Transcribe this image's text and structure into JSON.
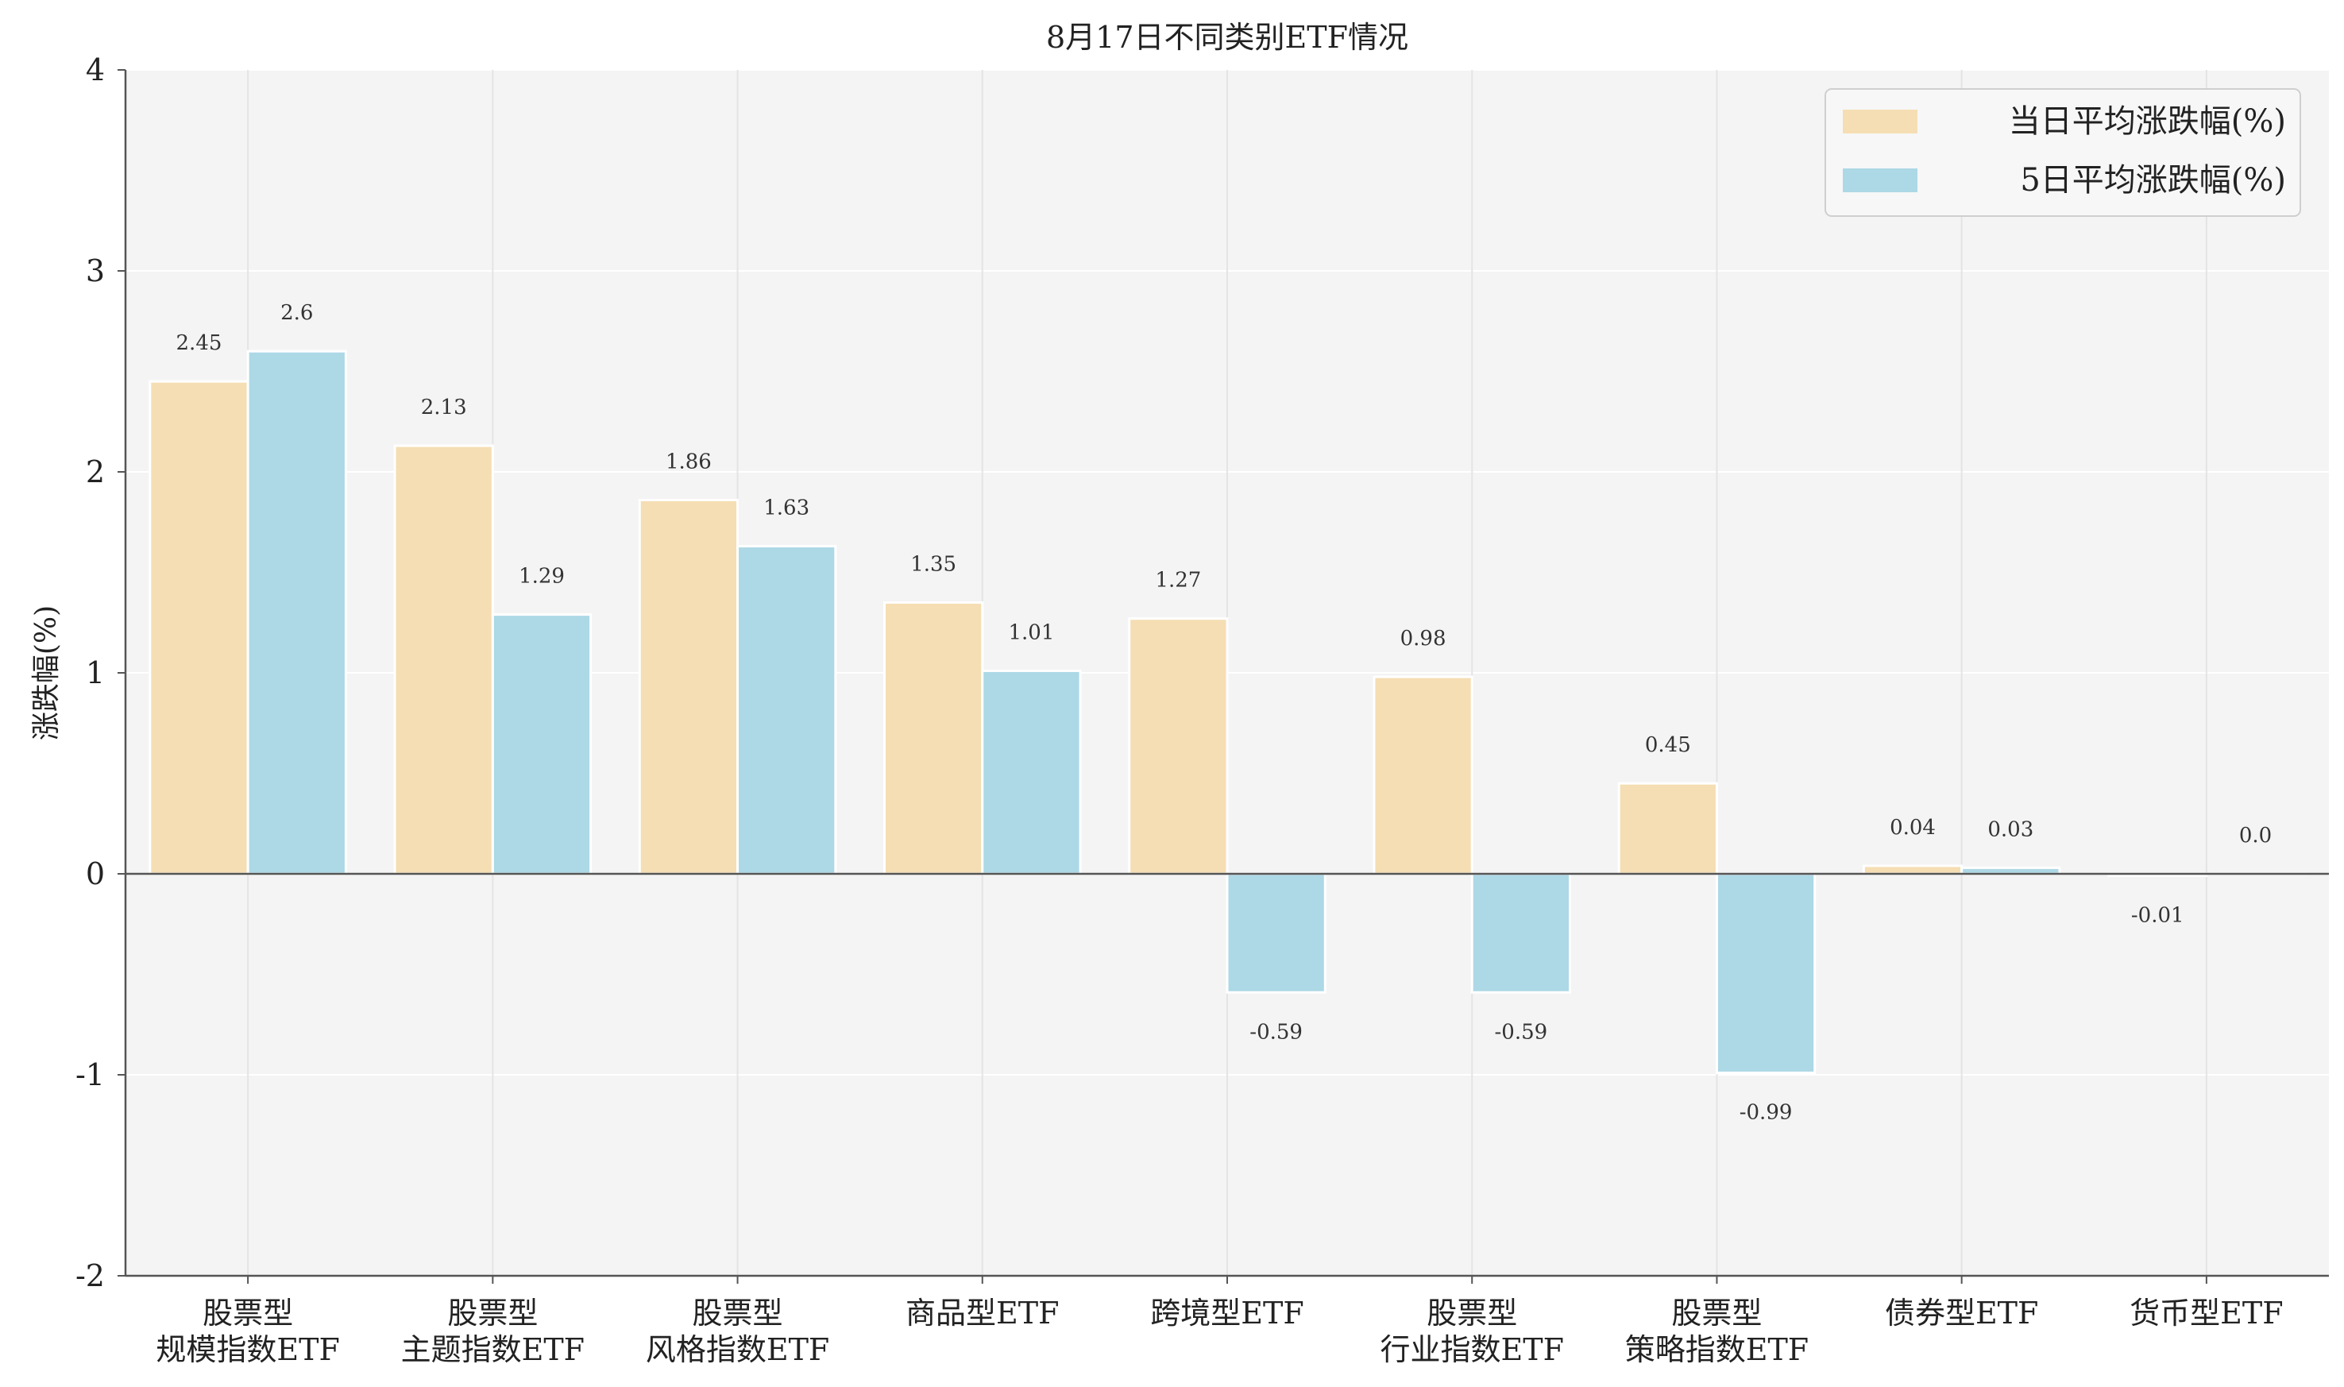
{
  "chart_data": {
    "type": "bar",
    "title": "8月17日不同类别ETF情况",
    "ylabel": "涨跌幅(%)",
    "xlabel": "",
    "ylim": [
      -2,
      4
    ],
    "yticks": [
      -2,
      -1,
      0,
      1,
      2,
      3,
      4
    ],
    "grid": true,
    "legend_position": "top-right",
    "categories": [
      [
        "股票型",
        "规模指数ETF"
      ],
      [
        "股票型",
        "主题指数ETF"
      ],
      [
        "股票型",
        "风格指数ETF"
      ],
      [
        "商品型ETF"
      ],
      [
        "跨境型ETF"
      ],
      [
        "股票型",
        "行业指数ETF"
      ],
      [
        "股票型",
        "策略指数ETF"
      ],
      [
        "债券型ETF"
      ],
      [
        "货币型ETF"
      ]
    ],
    "series": [
      {
        "name": "当日平均涨跌幅(%)",
        "color": "#f5deb3",
        "values": [
          2.45,
          2.13,
          1.86,
          1.35,
          1.27,
          0.98,
          0.45,
          0.04,
          -0.01
        ],
        "labels": [
          "2.45",
          "2.13",
          "1.86",
          "1.35",
          "1.27",
          "0.98",
          "0.45",
          "0.04",
          "-0.01"
        ]
      },
      {
        "name": "5日平均涨跌幅(%)",
        "color": "#add8e6",
        "values": [
          2.6,
          1.29,
          1.63,
          1.01,
          -0.59,
          -0.59,
          -0.99,
          0.03,
          0.0
        ],
        "labels": [
          "2.6",
          "1.29",
          "1.63",
          "1.01",
          "-0.59",
          "-0.59",
          "-0.99",
          "0.03",
          "0.0"
        ]
      }
    ]
  }
}
